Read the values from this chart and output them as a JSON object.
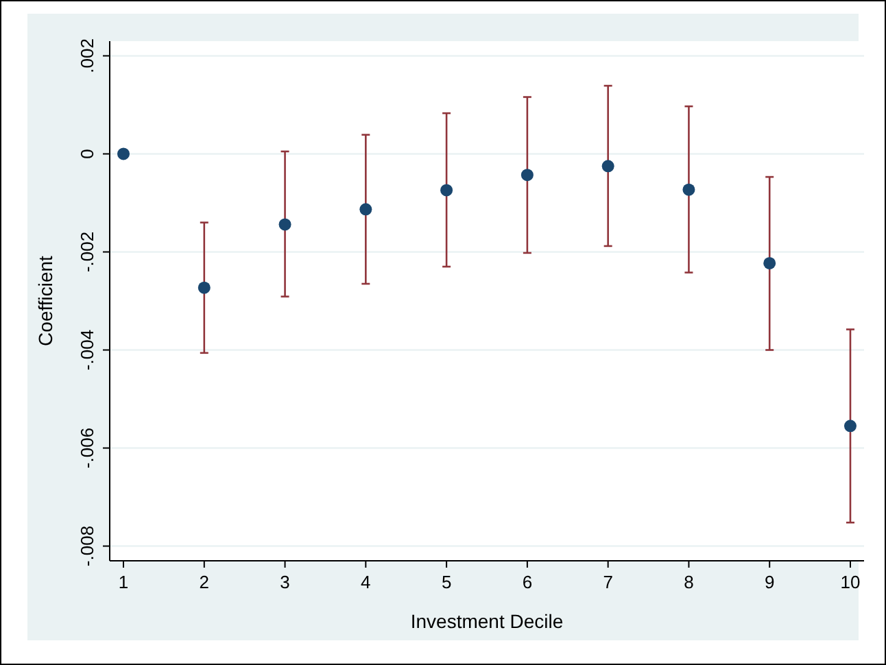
{
  "chart_data": {
    "type": "scatter",
    "xlabel": "Investment Decile",
    "ylabel": "Coefficient",
    "x": [
      1,
      2,
      3,
      4,
      5,
      6,
      7,
      8,
      9,
      10
    ],
    "values": [
      0,
      -0.00273,
      -0.00144,
      -0.00113,
      -0.00074,
      -0.00043,
      -0.00025,
      -0.00073,
      -0.00223,
      -0.00555
    ],
    "errors": [
      null,
      [
        -0.00406,
        -0.0014
      ],
      [
        -0.00291,
        5e-05
      ],
      [
        -0.00265,
        0.00039
      ],
      [
        -0.0023,
        0.00083
      ],
      [
        -0.00202,
        0.00116
      ],
      [
        -0.00188,
        0.00139
      ],
      [
        -0.00242,
        0.00097
      ],
      [
        -0.004,
        -0.00047
      ],
      [
        -0.00752,
        -0.00358
      ]
    ],
    "color": "#1a476f",
    "marker": "circle",
    "xlim": [
      0.83,
      10.17
    ],
    "xticks": [
      1,
      2,
      3,
      4,
      5,
      6,
      7,
      8,
      9,
      10
    ],
    "ylim": [
      -0.0083,
      0.0023
    ],
    "yticks": [
      {
        "value": -0.008,
        "label": "-.008"
      },
      {
        "value": -0.006,
        "label": "-.006"
      },
      {
        "value": -0.004,
        "label": "-.004"
      },
      {
        "value": -0.002,
        "label": "-.002"
      },
      0,
      {
        "value": 0.002,
        "label": ".002"
      }
    ],
    "grid": "y"
  }
}
